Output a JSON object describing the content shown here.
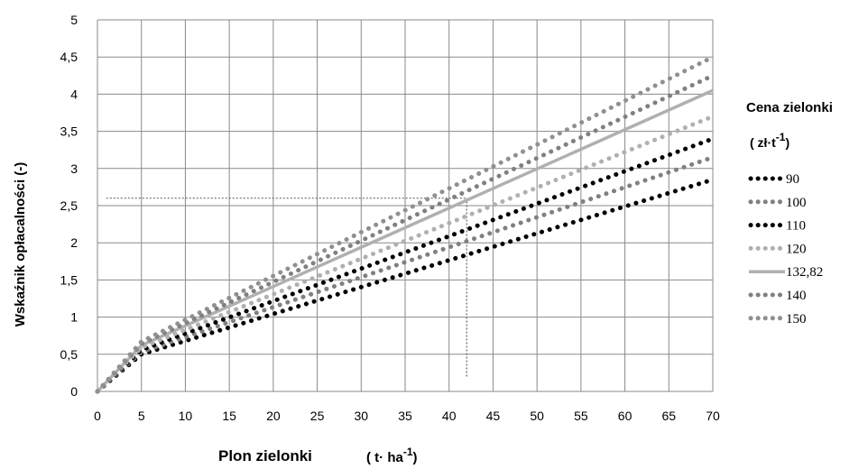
{
  "chart_data": {
    "type": "line",
    "title": "",
    "xlabel": "Plon zielonki",
    "xlabel_unit": "( t· ha",
    "xlabel_unit_exp": "-1",
    "xlabel_unit_close": ")",
    "ylabel": "Wskaźnik opłacalności (-)",
    "xlim": [
      0,
      70
    ],
    "ylim": [
      0,
      5
    ],
    "x_ticks": [
      "0",
      "5",
      "10",
      "15",
      "20",
      "25",
      "30",
      "35",
      "40",
      "45",
      "50",
      "55",
      "60",
      "65",
      "70"
    ],
    "y_ticks": [
      "0",
      "0,5",
      "1",
      "1,5",
      "2",
      "2,5",
      "3",
      "3,5",
      "4",
      "4,5",
      "5"
    ],
    "grid": true,
    "legend_position": "right",
    "legend_title": "Cena zielonki",
    "legend_unit": "( zł·t",
    "legend_unit_exp": "-1",
    "legend_unit_close": ")",
    "x": [
      0,
      5,
      70
    ],
    "series": [
      {
        "name": "90",
        "color": "#000000",
        "style": "dotted",
        "values": [
          0,
          0.5,
          2.85
        ]
      },
      {
        "name": "100",
        "color": "#808080",
        "style": "dotted",
        "values": [
          0,
          0.53,
          3.15
        ]
      },
      {
        "name": "110",
        "color": "#000000",
        "style": "dotted",
        "values": [
          0,
          0.56,
          3.4
        ]
      },
      {
        "name": "120",
        "color": "#b0b0b0",
        "style": "dotted",
        "values": [
          0,
          0.59,
          3.7
        ]
      },
      {
        "name": "132,82",
        "color": "#b0b0b0",
        "style": "solid",
        "values": [
          0,
          0.62,
          4.05
        ]
      },
      {
        "name": "140",
        "color": "#808080",
        "style": "dotted",
        "values": [
          0,
          0.64,
          4.25
        ]
      },
      {
        "name": "150",
        "color": "#909090",
        "style": "dotted",
        "values": [
          0,
          0.67,
          4.5
        ]
      }
    ],
    "reference_lines": [
      {
        "x": [
          1,
          42
        ],
        "y": [
          2.6,
          2.6
        ]
      },
      {
        "x": [
          42,
          42
        ],
        "y": [
          0.2,
          2.6
        ]
      }
    ]
  }
}
